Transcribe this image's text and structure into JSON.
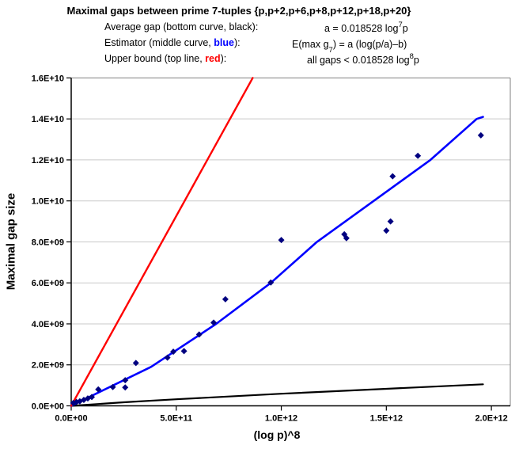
{
  "header": {
    "title": "Maximal gaps between prime 7-tuples {p,p+2,p+6,p+8,p+12,p+18,p+20}",
    "rows": [
      {
        "label_pre": "Average gap (bottom curve, black):",
        "label_colored": "",
        "label_post": "",
        "color": "#000000",
        "f_pre": "a = 0.018528 log",
        "f_sup": "7",
        "f_sub": "",
        "f_post": "p"
      },
      {
        "label_pre": "Estimator (middle curve, ",
        "label_colored": "blue",
        "label_post": "):",
        "color": "#0000ff",
        "f_pre": "E(max g",
        "f_sup": "",
        "f_sub": "7",
        "f_post": ") = a (log(p/a)–b)"
      },
      {
        "label_pre": "Upper bound (top line, ",
        "label_colored": "red",
        "label_post": "):",
        "color": "#ff0000",
        "f_pre": "all gaps < 0.018528 log",
        "f_sup": "8",
        "f_sub": "",
        "f_post": "p"
      }
    ]
  },
  "chart_data": {
    "type": "scatter",
    "title": "Maximal gaps between prime 7-tuples {p,p+2,p+6,p+8,p+12,p+18,p+20}",
    "xlabel": "(log p)^8",
    "ylabel": "Maximal gap size",
    "xlim": [
      0,
      2090000000000.0
    ],
    "ylim": [
      0,
      16000000000.0
    ],
    "grid": "horizontal-only",
    "legend_position": "none",
    "xticks": {
      "values": [
        0,
        500000000000.0,
        1000000000000.0,
        1500000000000.0,
        2000000000000.0
      ],
      "labels": [
        "0.0E+00",
        "5.0E+11",
        "1.0E+12",
        "1.5E+12",
        "2.0E+12"
      ]
    },
    "yticks": {
      "values": [
        0,
        2000000000.0,
        4000000000.0,
        6000000000.0,
        8000000000.0,
        10000000000.0,
        12000000000.0,
        14000000000.0,
        16000000000.0
      ],
      "labels": [
        "0.0E+00",
        "2.0E+09",
        "4.0E+09",
        "6.0E+09",
        "8.0E+09",
        "1.0E+10",
        "1.2E+10",
        "1.4E+10",
        "1.6E+10"
      ]
    },
    "colors": {
      "grid": "#c9c9c9",
      "border": "#808080",
      "axis": "#000000",
      "scatter": "#000080",
      "average": "#000000",
      "estimator": "#0000ff",
      "upper_bound": "#ff0000"
    },
    "series": [
      {
        "name": "average-gap-line",
        "type": "line",
        "color": "#000000",
        "points": [
          [
            0,
            0
          ],
          [
            250000000000.0,
            175000000.0
          ],
          [
            500000000000.0,
            320000000.0
          ],
          [
            1000000000000.0,
            590000000.0
          ],
          [
            1500000000000.0,
            830000000.0
          ],
          [
            1960000000000.0,
            1050000000.0
          ]
        ]
      },
      {
        "name": "estimator-line",
        "type": "line",
        "color": "#0000ff",
        "points": [
          [
            0,
            0
          ],
          [
            380000000000.0,
            1900000000.0
          ],
          [
            690000000000.0,
            4000000000.0
          ],
          [
            950000000000.0,
            6000000000.0
          ],
          [
            1170000000000.0,
            8000000000.0
          ],
          [
            1440000000000.0,
            10000000000.0
          ],
          [
            1710000000000.0,
            12000000000.0
          ],
          [
            1930000000000.0,
            14000000000.0
          ],
          [
            1960000000000.0,
            14100000000.0
          ]
        ]
      },
      {
        "name": "upper-bound-line",
        "type": "line",
        "color": "#ff0000",
        "points": [
          [
            0,
            0
          ],
          [
            864000000000.0,
            16000000000.0
          ]
        ]
      },
      {
        "name": "maximal-gap-points",
        "type": "scatter",
        "color": "#000080",
        "points": [
          [
            10000000000.0,
            140000000.0
          ],
          [
            25000000000.0,
            190000000.0
          ],
          [
            41000000000.0,
            220000000.0
          ],
          [
            60000000000.0,
            290000000.0
          ],
          [
            79000000000.0,
            360000000.0
          ],
          [
            98000000000.0,
            430000000.0
          ],
          [
            129000000000.0,
            800000000.0
          ],
          [
            198000000000.0,
            920000000.0
          ],
          [
            257000000000.0,
            900000000.0
          ],
          [
            257000000000.0,
            1250000000.0
          ],
          [
            308000000000.0,
            2090000000.0
          ],
          [
            458000000000.0,
            2350000000.0
          ],
          [
            486000000000.0,
            2640000000.0
          ],
          [
            537000000000.0,
            2670000000.0
          ],
          [
            609000000000.0,
            3480000000.0
          ],
          [
            678000000000.0,
            4060000000.0
          ],
          [
            734000000000.0,
            5200000000.0
          ],
          [
            950000000000.0,
            6020000000.0
          ],
          [
            1000000000000.0,
            8090000000.0
          ],
          [
            1300000000000.0,
            8370000000.0
          ],
          [
            1310000000000.0,
            8180000000.0
          ],
          [
            1500000000000.0,
            8550000000.0
          ],
          [
            1520000000000.0,
            9000000000.0
          ],
          [
            1530000000000.0,
            11200000000.0
          ],
          [
            1650000000000.0,
            12200000000.0
          ],
          [
            1950000000000.0,
            13200000000.0
          ]
        ]
      }
    ]
  }
}
